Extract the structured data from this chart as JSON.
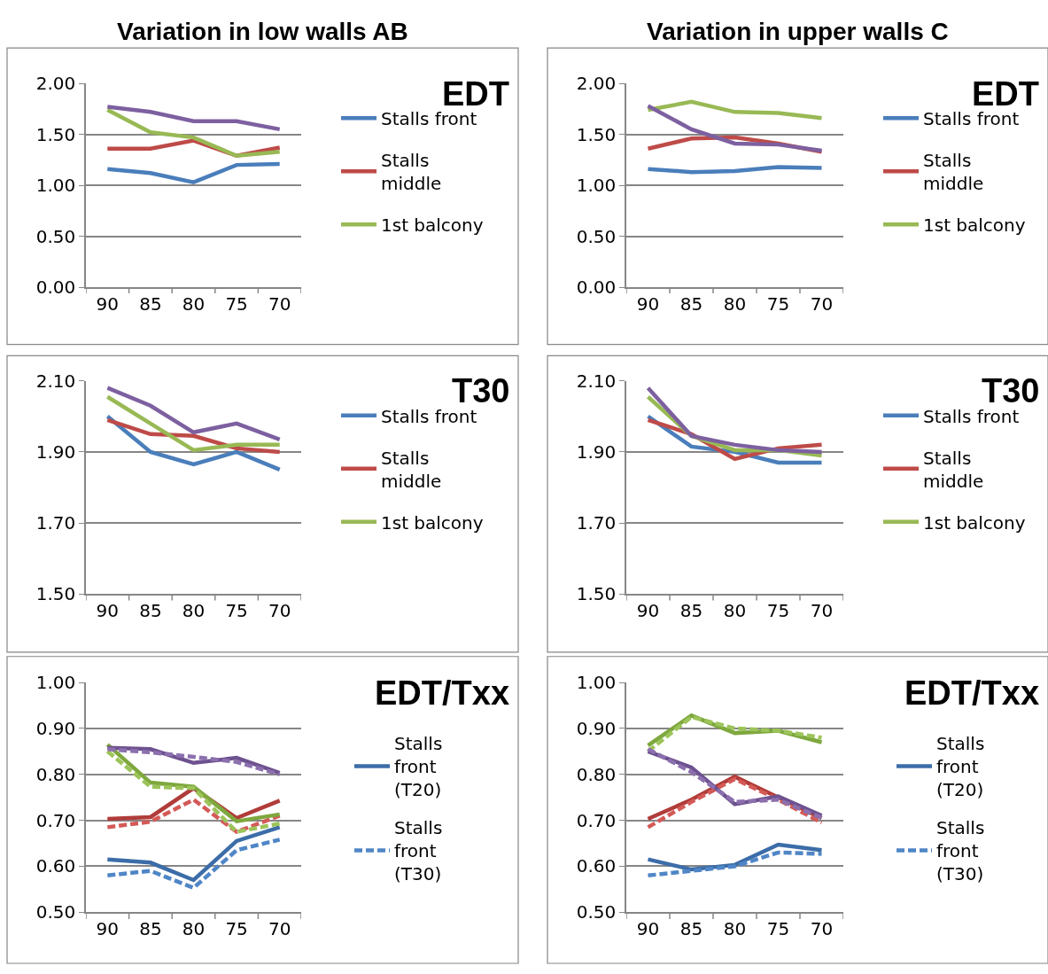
{
  "chart_data": [
    {
      "type": "line",
      "title": "Variation in low walls AB",
      "annotations": [
        "EDT"
      ],
      "categories": [
        "90",
        "85",
        "80",
        "75",
        "70"
      ],
      "ylim": [
        0,
        2
      ],
      "yticks": [
        {
          "value": 0,
          "label": "0.00"
        },
        {
          "value": 0.5,
          "label": "0.50"
        },
        {
          "value": 1,
          "label": "1.00"
        },
        {
          "value": 1.5,
          "label": "1.50"
        },
        {
          "value": 2,
          "label": "2.00"
        }
      ],
      "grid": "y",
      "legend": "right",
      "series": [
        {
          "name": "Stalls front",
          "color": "#4a7ebb",
          "values": [
            1.16,
            1.12,
            1.03,
            1.2,
            1.21
          ]
        },
        {
          "name": "Stalls middle",
          "color": "#be4b48",
          "values": [
            1.36,
            1.36,
            1.44,
            1.29,
            1.37
          ]
        },
        {
          "name": "1st balcony",
          "color": "#98b954",
          "values": [
            1.74,
            1.52,
            1.47,
            1.29,
            1.33
          ]
        },
        {
          "color": "#7d60a0",
          "values": [
            1.77,
            1.72,
            1.63,
            1.63,
            1.55
          ]
        }
      ]
    },
    {
      "type": "line",
      "title": "Variation in upper walls C",
      "annotations": [
        "EDT"
      ],
      "categories": [
        "90",
        "85",
        "80",
        "75",
        "70"
      ],
      "ylim": [
        0,
        2
      ],
      "yticks": [
        {
          "value": 0,
          "label": "0.00"
        },
        {
          "value": 0.5,
          "label": "0.50"
        },
        {
          "value": 1,
          "label": "1.00"
        },
        {
          "value": 1.5,
          "label": "1.50"
        },
        {
          "value": 2,
          "label": "2.00"
        }
      ],
      "grid": "y",
      "legend": "right",
      "series": [
        {
          "name": "Stalls front",
          "color": "#4a7ebb",
          "values": [
            1.16,
            1.13,
            1.14,
            1.18,
            1.17
          ]
        },
        {
          "name": "Stalls middle",
          "color": "#be4b48",
          "values": [
            1.36,
            1.46,
            1.47,
            1.41,
            1.33
          ]
        },
        {
          "name": "1st balcony",
          "color": "#98b954",
          "values": [
            1.74,
            1.82,
            1.72,
            1.71,
            1.66
          ]
        },
        {
          "color": "#7d60a0",
          "values": [
            1.78,
            1.55,
            1.41,
            1.4,
            1.34
          ]
        }
      ]
    },
    {
      "type": "line",
      "annotations": [
        "T30"
      ],
      "categories": [
        "90",
        "85",
        "80",
        "75",
        "70"
      ],
      "ylim": [
        1.5,
        2.1
      ],
      "yticks": [
        {
          "value": 1.5,
          "label": "1.50"
        },
        {
          "value": 1.7,
          "label": "1.70"
        },
        {
          "value": 1.9,
          "label": "1.90"
        },
        {
          "value": 2.1,
          "label": "2.10"
        }
      ],
      "grid": "y",
      "legend": "right",
      "series": [
        {
          "name": "Stalls front",
          "color": "#4a7ebb",
          "values": [
            2.0,
            1.9,
            1.865,
            1.9,
            1.85
          ]
        },
        {
          "name": "Stalls middle",
          "color": "#be4b48",
          "values": [
            1.99,
            1.95,
            1.945,
            1.91,
            1.9
          ]
        },
        {
          "name": "1st balcony",
          "color": "#98b954",
          "values": [
            2.055,
            1.98,
            1.905,
            1.92,
            1.92
          ]
        },
        {
          "color": "#7d60a0",
          "values": [
            2.08,
            2.03,
            1.955,
            1.98,
            1.935
          ]
        }
      ]
    },
    {
      "type": "line",
      "annotations": [
        "T30"
      ],
      "categories": [
        "90",
        "85",
        "80",
        "75",
        "70"
      ],
      "ylim": [
        1.5,
        2.1
      ],
      "yticks": [
        {
          "value": 1.5,
          "label": "1.50"
        },
        {
          "value": 1.7,
          "label": "1.70"
        },
        {
          "value": 1.9,
          "label": "1.90"
        },
        {
          "value": 2.1,
          "label": "2.10"
        }
      ],
      "grid": "y",
      "legend": "right",
      "series": [
        {
          "name": "Stalls front",
          "color": "#4a7ebb",
          "values": [
            2.0,
            1.915,
            1.9,
            1.87,
            1.87
          ]
        },
        {
          "name": "Stalls middle",
          "color": "#be4b48",
          "values": [
            1.99,
            1.95,
            1.88,
            1.91,
            1.92
          ]
        },
        {
          "name": "1st balcony",
          "color": "#98b954",
          "values": [
            2.055,
            1.945,
            1.905,
            1.905,
            1.89
          ]
        },
        {
          "color": "#7d60a0",
          "values": [
            2.08,
            1.945,
            1.92,
            1.905,
            1.9
          ]
        }
      ]
    },
    {
      "type": "line",
      "annotations": [
        "EDT/Txx"
      ],
      "categories": [
        "90",
        "85",
        "80",
        "75",
        "70"
      ],
      "ylim": [
        0.5,
        1
      ],
      "yticks": [
        {
          "value": 0.5,
          "label": "0.50"
        },
        {
          "value": 0.6,
          "label": "0.60"
        },
        {
          "value": 0.7,
          "label": "0.70"
        },
        {
          "value": 0.8,
          "label": "0.80"
        },
        {
          "value": 0.9,
          "label": "0.90"
        },
        {
          "value": 1,
          "label": "1.00"
        }
      ],
      "grid": "y",
      "legend": "right",
      "series": [
        {
          "name": "Stalls front (T20)",
          "color": "#3c6da8",
          "line_style": "solid",
          "values": [
            0.615,
            0.608,
            0.57,
            0.655,
            0.685
          ]
        },
        {
          "name": "Stalls front (T30)",
          "color": "#4f86c6",
          "line_style": "dashed",
          "values": [
            0.58,
            0.59,
            0.553,
            0.635,
            0.658
          ]
        },
        {
          "color": "#b03c3a",
          "line_style": "solid",
          "values": [
            0.703,
            0.707,
            0.77,
            0.705,
            0.743
          ]
        },
        {
          "color": "#d45a57",
          "line_style": "dashed",
          "values": [
            0.685,
            0.697,
            0.745,
            0.675,
            0.71
          ]
        },
        {
          "color": "#7ea83e",
          "line_style": "solid",
          "values": [
            0.865,
            0.782,
            0.773,
            0.698,
            0.713
          ]
        },
        {
          "color": "#9cc45a",
          "line_style": "dashed",
          "values": [
            0.85,
            0.773,
            0.77,
            0.675,
            0.693
          ]
        },
        {
          "color": "#6e5290",
          "line_style": "solid",
          "values": [
            0.858,
            0.855,
            0.825,
            0.836,
            0.803
          ]
        },
        {
          "color": "#8c70ae",
          "line_style": "dashed",
          "values": [
            0.855,
            0.848,
            0.838,
            0.827,
            0.8
          ]
        }
      ]
    },
    {
      "type": "line",
      "annotations": [
        "EDT/Txx"
      ],
      "categories": [
        "90",
        "85",
        "80",
        "75",
        "70"
      ],
      "ylim": [
        0.5,
        1
      ],
      "yticks": [
        {
          "value": 0.5,
          "label": "0.50"
        },
        {
          "value": 0.6,
          "label": "0.60"
        },
        {
          "value": 0.7,
          "label": "0.70"
        },
        {
          "value": 0.8,
          "label": "0.80"
        },
        {
          "value": 0.9,
          "label": "0.90"
        },
        {
          "value": 1,
          "label": "1.00"
        }
      ],
      "grid": "y",
      "legend": "right",
      "series": [
        {
          "name": "Stalls front (T20)",
          "color": "#3c6da8",
          "line_style": "solid",
          "values": [
            0.615,
            0.593,
            0.603,
            0.647,
            0.635
          ]
        },
        {
          "name": "Stalls front (T30)",
          "color": "#4f86c6",
          "line_style": "dashed",
          "values": [
            0.58,
            0.59,
            0.6,
            0.63,
            0.627
          ]
        },
        {
          "color": "#b03c3a",
          "line_style": "solid",
          "values": [
            0.703,
            0.745,
            0.795,
            0.75,
            0.705
          ]
        },
        {
          "color": "#d45a57",
          "line_style": "dashed",
          "values": [
            0.685,
            0.74,
            0.79,
            0.745,
            0.695
          ]
        },
        {
          "color": "#7ea83e",
          "line_style": "solid",
          "values": [
            0.863,
            0.928,
            0.89,
            0.895,
            0.87
          ]
        },
        {
          "color": "#9cc45a",
          "line_style": "dashed",
          "values": [
            0.85,
            0.925,
            0.9,
            0.895,
            0.88
          ]
        },
        {
          "color": "#6e5290",
          "line_style": "solid",
          "values": [
            0.85,
            0.815,
            0.735,
            0.752,
            0.71
          ]
        },
        {
          "color": "#8c70ae",
          "line_style": "dashed",
          "values": [
            0.855,
            0.805,
            0.74,
            0.745,
            0.705
          ]
        }
      ]
    }
  ]
}
